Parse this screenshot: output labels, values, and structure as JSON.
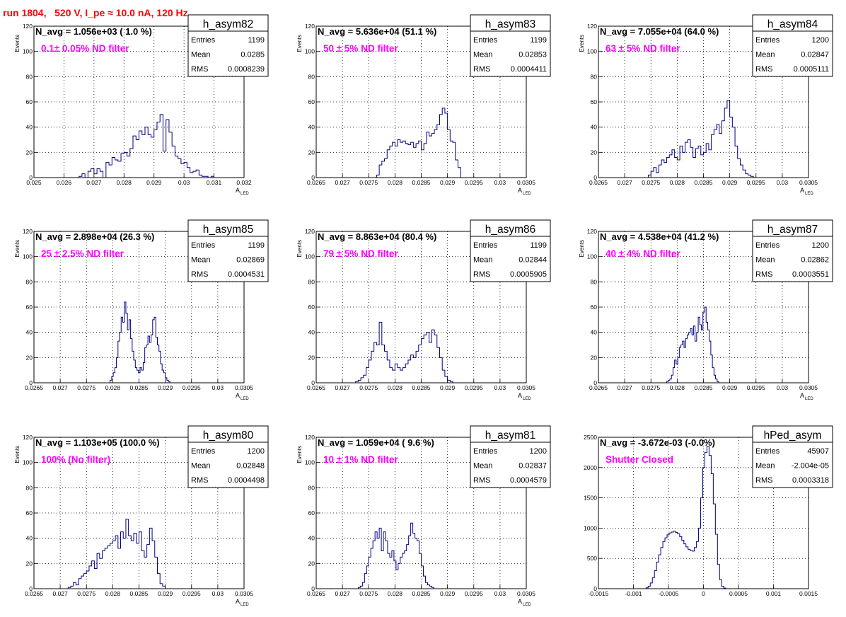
{
  "header": {
    "title": "run 1804,   520 V, I_pe ≈ 10.0 nA, 120 Hz"
  },
  "colors": {
    "title": "#ff0000",
    "line": "#000080",
    "annotation": "#ff00ff",
    "grid": "#000000"
  },
  "chart_data": [
    {
      "type": "histogram",
      "name": "h_asym82",
      "navg_text": "N_avg = 1.056e+03 ( 1.0 %)",
      "filter_text": "0.1± 0.05% ND filter",
      "stats": [
        {
          "label": "Entries",
          "value": "1199"
        },
        {
          "label": "Mean",
          "value": "0.0285"
        },
        {
          "label": "RMS",
          "value": "0.0008239"
        }
      ],
      "ylabel": "Events",
      "xlabel": "A",
      "xlabel_sub": "LED",
      "xlim": [
        0.025,
        0.032
      ],
      "ylim": [
        0,
        120
      ],
      "xticks": [
        0.025,
        0.026,
        0.027,
        0.028,
        0.029,
        0.03,
        0.031,
        0.032
      ],
      "xtick_labels": [
        "0.025",
        "0.026",
        "0.027",
        "0.028",
        "0.029",
        "0.03",
        "0.031",
        "0.032"
      ],
      "yticks": [
        0,
        20,
        40,
        60,
        80,
        100,
        120
      ],
      "ytick_labels": [
        "0",
        "20",
        "40",
        "60",
        "80",
        "100",
        "120"
      ],
      "bin_edges_start": 0.0265,
      "bin_width": 0.0001,
      "counts": [
        1,
        3,
        0,
        5,
        7,
        3,
        7,
        5,
        0,
        12,
        10,
        16,
        14,
        13,
        19,
        20,
        17,
        23,
        33,
        30,
        37,
        34,
        40,
        34,
        32,
        38,
        44,
        50,
        21,
        46,
        36,
        25,
        17,
        15,
        11,
        12,
        8,
        4,
        5,
        6,
        2,
        1,
        1,
        0,
        1
      ]
    },
    {
      "type": "histogram",
      "name": "h_asym83",
      "navg_text": "N_avg = 5.636e+04 (51.1 %)",
      "filter_text": "50 ± 5% ND filter",
      "stats": [
        {
          "label": "Entries",
          "value": "1199"
        },
        {
          "label": "Mean",
          "value": "0.02853"
        },
        {
          "label": "RMS",
          "value": "0.0004411"
        }
      ],
      "ylabel": "Events",
      "xlabel": "A",
      "xlabel_sub": "LED",
      "xlim": [
        0.0265,
        0.0305
      ],
      "ylim": [
        0,
        120
      ],
      "xticks": [
        0.0265,
        0.027,
        0.0275,
        0.028,
        0.0285,
        0.029,
        0.0295,
        0.03,
        0.0305
      ],
      "xtick_labels": [
        "0.0265",
        "0.027",
        "0.0275",
        "0.028",
        "0.0285",
        "0.029",
        "0.0295",
        "0.03",
        "0.0305"
      ],
      "yticks": [
        0,
        20,
        40,
        60,
        80,
        100,
        120
      ],
      "ytick_labels": [
        "0",
        "20",
        "40",
        "60",
        "80",
        "100",
        "120"
      ],
      "bin_edges_start": 0.02765,
      "bin_width": 5e-05,
      "counts": [
        2,
        10,
        13,
        15,
        22,
        25,
        28,
        25,
        30,
        28,
        29,
        27,
        26,
        28,
        24,
        27,
        29,
        22,
        27,
        36,
        33,
        35,
        38,
        42,
        50,
        55,
        51,
        38,
        29,
        28,
        14,
        8
      ]
    },
    {
      "type": "histogram",
      "name": "h_asym84",
      "navg_text": "N_avg = 7.055e+04 (64.0 %)",
      "filter_text": "63 ± 5% ND filter",
      "stats": [
        {
          "label": "Entries",
          "value": "1200"
        },
        {
          "label": "Mean",
          "value": "0.02847"
        },
        {
          "label": "RMS",
          "value": "0.0005111"
        }
      ],
      "ylabel": "Events",
      "xlabel": "A",
      "xlabel_sub": "LED",
      "xlim": [
        0.0265,
        0.0305
      ],
      "ylim": [
        0,
        120
      ],
      "xticks": [
        0.0265,
        0.027,
        0.0275,
        0.028,
        0.0285,
        0.029,
        0.0295,
        0.03,
        0.0305
      ],
      "xtick_labels": [
        "0.0265",
        "0.027",
        "0.0275",
        "0.028",
        "0.0285",
        "0.029",
        "0.0295",
        "0.03",
        "0.0305"
      ],
      "yticks": [
        0,
        20,
        40,
        60,
        80,
        100,
        120
      ],
      "ytick_labels": [
        "0",
        "20",
        "40",
        "60",
        "80",
        "100",
        "120"
      ],
      "bin_edges_start": 0.02745,
      "bin_width": 5e-05,
      "counts": [
        2,
        5,
        8,
        4,
        10,
        14,
        12,
        16,
        18,
        22,
        16,
        14,
        25,
        20,
        28,
        30,
        24,
        16,
        23,
        25,
        18,
        20,
        27,
        22,
        34,
        38,
        42,
        35,
        45,
        55,
        61,
        48,
        40,
        25,
        15,
        10,
        6,
        3,
        2,
        1
      ]
    },
    {
      "type": "histogram",
      "name": "h_asym85",
      "navg_text": "N_avg = 2.898e+04 (26.3 %)",
      "filter_text": "25 ± 2.5% ND filter",
      "stats": [
        {
          "label": "Entries",
          "value": "1199"
        },
        {
          "label": "Mean",
          "value": "0.02869"
        },
        {
          "label": "RMS",
          "value": "0.0004531"
        }
      ],
      "ylabel": "Events",
      "xlabel": "A",
      "xlabel_sub": "LED",
      "xlim": [
        0.0265,
        0.0305
      ],
      "ylim": [
        0,
        120
      ],
      "xticks": [
        0.0265,
        0.027,
        0.0275,
        0.028,
        0.0285,
        0.029,
        0.0295,
        0.03,
        0.0305
      ],
      "xtick_labels": [
        "0.0265",
        "0.027",
        "0.0275",
        "0.028",
        "0.0285",
        "0.029",
        "0.0295",
        "0.03",
        "0.0305"
      ],
      "yticks": [
        0,
        20,
        40,
        60,
        80,
        100,
        120
      ],
      "ytick_labels": [
        "0",
        "20",
        "40",
        "60",
        "80",
        "100",
        "120"
      ],
      "bin_edges_start": 0.02795,
      "bin_width": 3e-05,
      "counts": [
        2,
        5,
        8,
        12,
        20,
        33,
        40,
        52,
        48,
        64,
        55,
        42,
        50,
        35,
        25,
        18,
        12,
        10,
        8,
        12,
        10,
        16,
        28,
        30,
        37,
        32,
        38,
        50,
        52,
        36,
        30,
        25,
        15,
        10,
        8,
        4,
        2,
        1
      ]
    },
    {
      "type": "histogram",
      "name": "h_asym86",
      "navg_text": "N_avg = 8.863e+04 (80.4 %)",
      "filter_text": "79 ± 5% ND filter",
      "stats": [
        {
          "label": "Entries",
          "value": "1199"
        },
        {
          "label": "Mean",
          "value": "0.02844"
        },
        {
          "label": "RMS",
          "value": "0.0005905"
        }
      ],
      "ylabel": "Events",
      "xlabel": "A",
      "xlabel_sub": "LED",
      "xlim": [
        0.0265,
        0.0305
      ],
      "ylim": [
        0,
        120
      ],
      "xticks": [
        0.0265,
        0.027,
        0.0275,
        0.028,
        0.0285,
        0.029,
        0.0295,
        0.03,
        0.0305
      ],
      "xtick_labels": [
        "0.0265",
        "0.027",
        "0.0275",
        "0.028",
        "0.0285",
        "0.029",
        "0.0295",
        "0.03",
        "0.0305"
      ],
      "yticks": [
        0,
        20,
        40,
        60,
        80,
        100,
        120
      ],
      "ytick_labels": [
        "0",
        "20",
        "40",
        "60",
        "80",
        "100",
        "120"
      ],
      "bin_edges_start": 0.02725,
      "bin_width": 5e-05,
      "counts": [
        1,
        2,
        4,
        6,
        12,
        18,
        25,
        32,
        30,
        48,
        30,
        25,
        18,
        12,
        10,
        15,
        12,
        10,
        12,
        15,
        18,
        22,
        20,
        25,
        30,
        35,
        38,
        40,
        32,
        42,
        38,
        28,
        20,
        10,
        5,
        2,
        1
      ]
    },
    {
      "type": "histogram",
      "name": "h_asym87",
      "navg_text": "N_avg = 4.538e+04 (41.2 %)",
      "filter_text": "40 ± 4% ND filter",
      "stats": [
        {
          "label": "Entries",
          "value": "1200"
        },
        {
          "label": "Mean",
          "value": "0.02862"
        },
        {
          "label": "RMS",
          "value": "0.0003551"
        }
      ],
      "ylabel": "Events",
      "xlabel": "A",
      "xlabel_sub": "LED",
      "xlim": [
        0.0265,
        0.0305
      ],
      "ylim": [
        0,
        120
      ],
      "xticks": [
        0.0265,
        0.027,
        0.0275,
        0.028,
        0.0285,
        0.029,
        0.0295,
        0.03,
        0.0305
      ],
      "xtick_labels": [
        "0.0265",
        "0.027",
        "0.0275",
        "0.028",
        "0.0285",
        "0.029",
        "0.0295",
        "0.03",
        "0.0305"
      ],
      "yticks": [
        0,
        20,
        40,
        60,
        80,
        100,
        120
      ],
      "ytick_labels": [
        "0",
        "20",
        "40",
        "60",
        "80",
        "100",
        "120"
      ],
      "bin_edges_start": 0.0278,
      "bin_width": 3e-05,
      "counts": [
        1,
        2,
        3,
        6,
        12,
        18,
        15,
        20,
        28,
        30,
        33,
        28,
        35,
        38,
        40,
        43,
        38,
        45,
        33,
        40,
        52,
        46,
        42,
        56,
        60,
        48,
        42,
        33,
        22,
        12,
        6,
        3,
        1
      ]
    },
    {
      "type": "histogram",
      "name": "h_asym80",
      "navg_text": "N_avg = 1.103e+05 (100.0 %)",
      "filter_text": "100% (No filter)",
      "stats": [
        {
          "label": "Entries",
          "value": "1200"
        },
        {
          "label": "Mean",
          "value": "0.02848"
        },
        {
          "label": "RMS",
          "value": "0.0004498"
        }
      ],
      "ylabel": "Events",
      "xlabel": "A",
      "xlabel_sub": "LED",
      "xlim": [
        0.0265,
        0.0305
      ],
      "ylim": [
        0,
        120
      ],
      "xticks": [
        0.0265,
        0.027,
        0.0275,
        0.028,
        0.0285,
        0.029,
        0.0295,
        0.03,
        0.0305
      ],
      "xtick_labels": [
        "0.0265",
        "0.027",
        "0.0275",
        "0.028",
        "0.0285",
        "0.029",
        "0.0295",
        "0.03",
        "0.0305"
      ],
      "yticks": [
        0,
        20,
        40,
        60,
        80,
        100,
        120
      ],
      "ytick_labels": [
        "0",
        "20",
        "40",
        "60",
        "80",
        "100",
        "120"
      ],
      "bin_edges_start": 0.02715,
      "bin_width": 5e-05,
      "counts": [
        1,
        2,
        5,
        3,
        8,
        10,
        12,
        14,
        18,
        22,
        16,
        28,
        24,
        30,
        32,
        34,
        36,
        38,
        42,
        32,
        45,
        40,
        55,
        42,
        38,
        44,
        36,
        45,
        30,
        25,
        35,
        48,
        38,
        25,
        12,
        4,
        2
      ]
    },
    {
      "type": "histogram",
      "name": "h_asym81",
      "navg_text": "N_avg = 1.059e+04 ( 9.6 %)",
      "filter_text": "10 ± 1% ND filter",
      "stats": [
        {
          "label": "Entries",
          "value": "1200"
        },
        {
          "label": "Mean",
          "value": "0.02837"
        },
        {
          "label": "RMS",
          "value": "0.0004579"
        }
      ],
      "ylabel": "Events",
      "xlabel": "A",
      "xlabel_sub": "LED",
      "xlim": [
        0.0265,
        0.0305
      ],
      "ylim": [
        0,
        120
      ],
      "xticks": [
        0.0265,
        0.027,
        0.0275,
        0.028,
        0.0285,
        0.029,
        0.0295,
        0.03,
        0.0305
      ],
      "xtick_labels": [
        "0.0265",
        "0.027",
        "0.0275",
        "0.028",
        "0.0285",
        "0.029",
        "0.0295",
        "0.03",
        "0.0305"
      ],
      "yticks": [
        0,
        20,
        40,
        60,
        80,
        100,
        120
      ],
      "ytick_labels": [
        "0",
        "20",
        "40",
        "60",
        "80",
        "100",
        "120"
      ],
      "bin_edges_start": 0.0273,
      "bin_width": 4e-05,
      "counts": [
        1,
        2,
        5,
        12,
        18,
        25,
        32,
        38,
        45,
        40,
        48,
        30,
        45,
        38,
        28,
        25,
        30,
        22,
        15,
        20,
        25,
        28,
        30,
        35,
        42,
        52,
        44,
        40,
        38,
        28,
        18,
        10,
        5,
        3,
        2,
        1
      ]
    },
    {
      "type": "histogram",
      "name": "hPed_asym",
      "navg_text": "N_avg = -3.672e-03 (-0.0%)",
      "filter_text": "Shutter Closed",
      "stats": [
        {
          "label": "Entries",
          "value": "45907"
        },
        {
          "label": "Mean",
          "value": "-2.004e-05"
        },
        {
          "label": "RMS",
          "value": "0.0003318"
        }
      ],
      "ylabel": "",
      "xlabel": "",
      "xlabel_sub": "",
      "xlim": [
        -0.0015,
        0.0015
      ],
      "ylim": [
        0,
        2500
      ],
      "xticks": [
        -0.0015,
        -0.001,
        -0.0005,
        0,
        0.0005,
        0.001,
        0.0015
      ],
      "xtick_labels": [
        "-0.0015",
        "-0.001",
        "-0.0005",
        "0",
        "0.0005",
        "0.001",
        "0.0015"
      ],
      "yticks": [
        0,
        500,
        1000,
        1500,
        2000,
        2500
      ],
      "ytick_labels": [
        "0",
        "500",
        "1000",
        "1500",
        "2000",
        "2500"
      ],
      "bin_edges_start": -0.00082,
      "bin_width": 3e-05,
      "counts": [
        15,
        40,
        95,
        180,
        300,
        440,
        560,
        680,
        780,
        840,
        890,
        920,
        935,
        950,
        930,
        905,
        860,
        800,
        740,
        690,
        650,
        630,
        620,
        680,
        780,
        1000,
        1500,
        2000,
        2250,
        2350,
        2200,
        1900,
        1400,
        900,
        400,
        150,
        40,
        10
      ]
    }
  ]
}
